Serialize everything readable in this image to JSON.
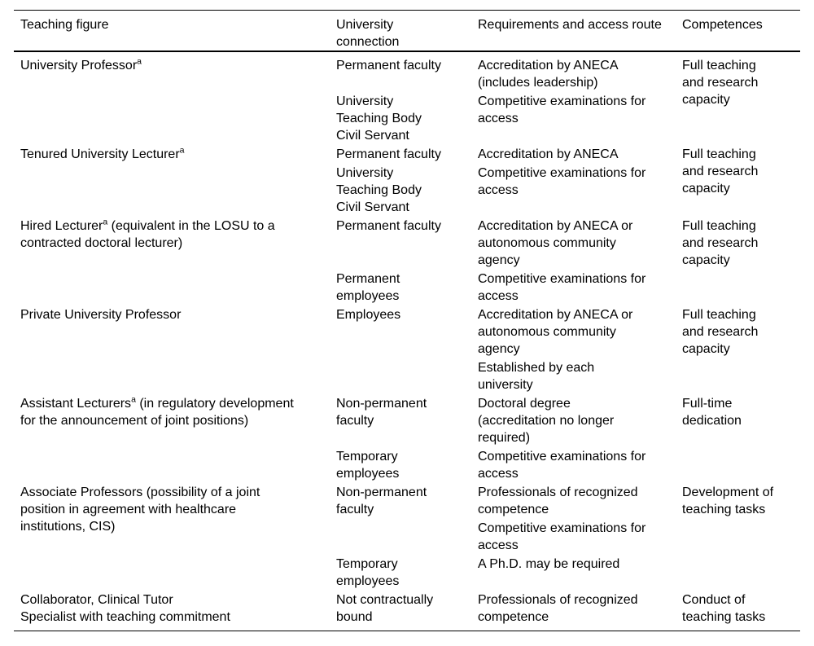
{
  "colors": {
    "text": "#000000",
    "background": "#ffffff",
    "rule": "#000000"
  },
  "table": {
    "header": {
      "col1": "Teaching figure",
      "col2": "University\nconnection",
      "col3": "Requirements and access route",
      "col4": "Competences"
    },
    "footnote_marker": "a",
    "rows": [
      {
        "figure": "University Professor",
        "figure_sup": "a",
        "figure_rest": "",
        "competence": "Full teaching\nand research\ncapacity",
        "subrows": [
          {
            "connection": "Permanent faculty",
            "requirement": "Accreditation by ANECA\n(includes leadership)"
          },
          {
            "connection": "University\nTeaching Body\nCivil Servant",
            "requirement": "Competitive examinations for\naccess"
          }
        ]
      },
      {
        "figure": "Tenured University Lecturer",
        "figure_sup": "a",
        "figure_rest": "",
        "competence": "Full teaching\nand research\ncapacity",
        "subrows": [
          {
            "connection": "Permanent faculty",
            "requirement": "Accreditation by ANECA"
          },
          {
            "connection": "University\nTeaching Body\nCivil Servant",
            "requirement": "Competitive examinations for\naccess"
          }
        ]
      },
      {
        "figure": "Hired Lecturer",
        "figure_sup": "a",
        "figure_rest": " (equivalent in the LOSU to a\ncontracted doctoral lecturer)",
        "competence": "Full teaching\nand research\ncapacity",
        "subrows": [
          {
            "connection": "Permanent faculty",
            "requirement": "Accreditation by ANECA or\nautonomous community\nagency"
          },
          {
            "connection": "Permanent\nemployees",
            "requirement": "Competitive examinations for\naccess"
          }
        ]
      },
      {
        "figure": "Private University Professor",
        "figure_sup": "",
        "figure_rest": "",
        "competence": "Full teaching\nand research\ncapacity",
        "subrows": [
          {
            "connection": "Employees",
            "requirement": "Accreditation by ANECA or\nautonomous community\nagency"
          },
          {
            "connection": "",
            "requirement": "Established by each\nuniversity"
          }
        ]
      },
      {
        "figure": "Assistant Lecturers",
        "figure_sup": "a",
        "figure_rest": " (in regulatory development\nfor the announcement of joint positions)",
        "competence": "Full-time\ndedication",
        "subrows": [
          {
            "connection": "Non-permanent\nfaculty",
            "requirement": "Doctoral degree\n(accreditation no longer\nrequired)"
          },
          {
            "connection": "Temporary\nemployees",
            "requirement": "Competitive examinations for\naccess"
          }
        ]
      },
      {
        "figure": "Associate Professors (possibility of a joint\nposition in agreement with healthcare\ninstitutions, CIS)",
        "figure_sup": "",
        "figure_rest": "",
        "competence": "Development of\nteaching tasks",
        "subrows": [
          {
            "connection": "Non-permanent\nfaculty",
            "requirement": "Professionals of recognized\ncompetence"
          },
          {
            "connection": "",
            "requirement": "Competitive examinations for\naccess"
          },
          {
            "connection": "Temporary\nemployees",
            "requirement": "A Ph.D. may be required"
          }
        ]
      },
      {
        "figure": "Collaborator, Clinical Tutor\nSpecialist with teaching commitment",
        "figure_sup": "",
        "figure_rest": "",
        "competence": "Conduct of\nteaching tasks",
        "subrows": [
          {
            "connection": "Not contractually\nbound",
            "requirement": "Professionals of recognized\ncompetence"
          }
        ]
      }
    ]
  }
}
